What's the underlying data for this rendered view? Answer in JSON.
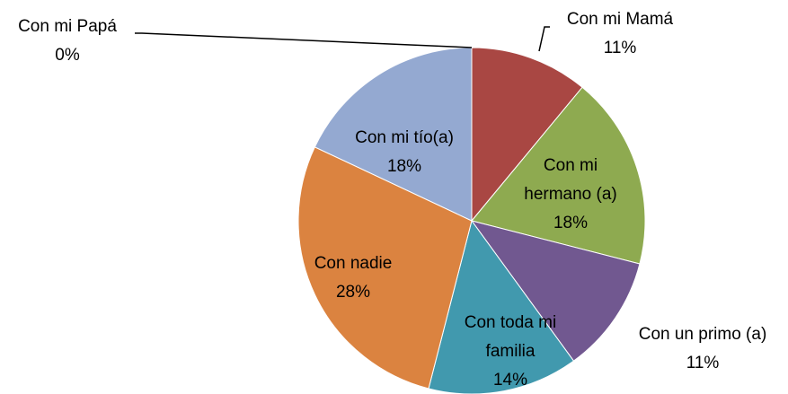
{
  "chart_data": {
    "type": "pie",
    "categories": [
      "Con mi Papá",
      "Con mi Mamá",
      "Con mi hermano (a)",
      "Con un primo (a)",
      "Con toda mi familia",
      "Con nadie",
      "Con mi tío(a)"
    ],
    "values": [
      0,
      11,
      18,
      11,
      14,
      28,
      18
    ],
    "value_labels": [
      "0%",
      "11%",
      "18%",
      "11%",
      "14%",
      "28%",
      "18%"
    ],
    "colors": [
      "#4f81bd",
      "#a94743",
      "#8eaa50",
      "#715890",
      "#4199ae",
      "#db8340",
      "#94a9d1"
    ]
  }
}
